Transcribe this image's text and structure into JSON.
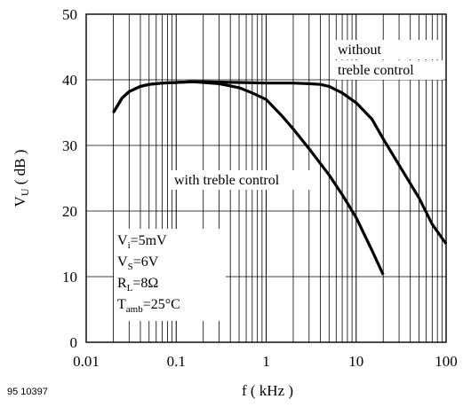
{
  "figure_id": "95 10397",
  "chart_data": {
    "type": "line",
    "x_scale": "log",
    "xlabel": "f ( kHz )",
    "ylabel_main": "V",
    "ylabel_sub": "U",
    "ylabel_unit": "( dB )",
    "xlim": [
      0.02,
      100
    ],
    "ylim": [
      0,
      50
    ],
    "x_ticks": [
      0.01,
      0.1,
      1,
      10,
      100
    ],
    "x_tick_labels": [
      "0.01",
      "0.1",
      "1",
      "10",
      "100"
    ],
    "y_ticks": [
      0,
      10,
      20,
      30,
      40,
      50
    ],
    "y_tick_labels": [
      "0",
      "10",
      "20",
      "30",
      "40",
      "50"
    ],
    "grid": true,
    "series": [
      {
        "name": "without treble control",
        "label_lines": [
          "without",
          "treble control"
        ],
        "color": "#000000",
        "points": [
          [
            0.02,
            35
          ],
          [
            0.025,
            37.2
          ],
          [
            0.03,
            38.2
          ],
          [
            0.04,
            39.0
          ],
          [
            0.05,
            39.3
          ],
          [
            0.07,
            39.5
          ],
          [
            0.1,
            39.6
          ],
          [
            0.15,
            39.7
          ],
          [
            0.2,
            39.7
          ],
          [
            0.3,
            39.65
          ],
          [
            0.5,
            39.6
          ],
          [
            1,
            39.5
          ],
          [
            2,
            39.5
          ],
          [
            3,
            39.4
          ],
          [
            4,
            39.3
          ],
          [
            5,
            39.0
          ],
          [
            7,
            38.0
          ],
          [
            10,
            36.5
          ],
          [
            15,
            34.0
          ],
          [
            20,
            31.0
          ],
          [
            30,
            27.0
          ],
          [
            50,
            22.0
          ],
          [
            70,
            18.0
          ],
          [
            100,
            15.0
          ]
        ]
      },
      {
        "name": "with treble control",
        "label_lines": [
          "with treble control"
        ],
        "color": "#000000",
        "points": [
          [
            0.02,
            35
          ],
          [
            0.025,
            37.2
          ],
          [
            0.03,
            38.2
          ],
          [
            0.04,
            39.0
          ],
          [
            0.05,
            39.3
          ],
          [
            0.07,
            39.5
          ],
          [
            0.1,
            39.6
          ],
          [
            0.15,
            39.7
          ],
          [
            0.2,
            39.6
          ],
          [
            0.3,
            39.4
          ],
          [
            0.5,
            38.8
          ],
          [
            0.7,
            38.0
          ],
          [
            1,
            37.0
          ],
          [
            1.5,
            34.5
          ],
          [
            2,
            32.5
          ],
          [
            3,
            29.5
          ],
          [
            5,
            25.5
          ],
          [
            7,
            22.5
          ],
          [
            10,
            19.0
          ],
          [
            15,
            14.0
          ],
          [
            20,
            10.3
          ]
        ]
      }
    ],
    "conditions": [
      {
        "main": "V",
        "sub": "i",
        "rest": "=5mV"
      },
      {
        "main": "V",
        "sub": "S",
        "rest": "=6V"
      },
      {
        "main": "R",
        "sub": "L",
        "rest": "=8Ω"
      },
      {
        "main": "T",
        "sub": "amb",
        "rest": "=25°C"
      }
    ]
  }
}
